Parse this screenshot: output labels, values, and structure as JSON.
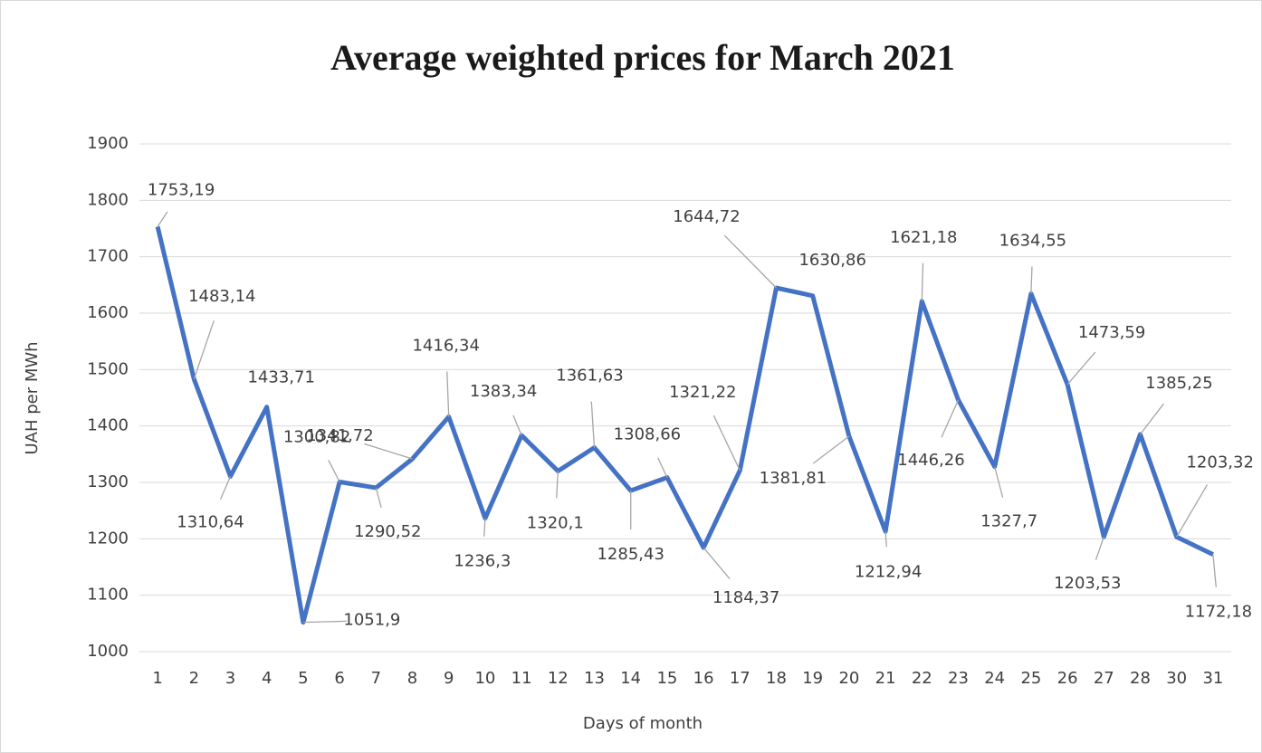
{
  "chart_data": {
    "type": "line",
    "title": "Average weighted prices for March 2021",
    "x_label": "Days of month",
    "y_label": "UAH per MWh",
    "categories": [
      "1",
      "2",
      "3",
      "4",
      "5",
      "6",
      "7",
      "8",
      "9",
      "10",
      "11",
      "12",
      "13",
      "14",
      "15",
      "16",
      "17",
      "18",
      "19",
      "20",
      "21",
      "22",
      "23",
      "24",
      "25",
      "26",
      "27",
      "28",
      "30",
      "31"
    ],
    "series": [
      {
        "name": "Average weighted price",
        "color": "#4472c4",
        "values": [
          1753.19,
          1483.14,
          1310.64,
          1433.71,
          1051.9,
          1300.82,
          1290.52,
          1341.72,
          1416.34,
          1236.3,
          1383.34,
          1320.1,
          1361.63,
          1285.43,
          1308.66,
          1184.37,
          1321.22,
          1644.72,
          1630.86,
          1381.81,
          1212.94,
          1621.18,
          1446.26,
          1327.7,
          1634.55,
          1473.59,
          1203.53,
          1385.25,
          1203.32,
          1172.18
        ],
        "value_labels": [
          "1753,19",
          "1483,14",
          "1310,64",
          "1433,71",
          "1051,9",
          "1300,82",
          "1290,52",
          "1341,72",
          "1416,34",
          "1236,3",
          "1383,34",
          "1320,1",
          "1361,63",
          "1285,43",
          "1308,66",
          "1184,37",
          "1321,22",
          "1644,72",
          "1630,86",
          "1381,81",
          "1212,94",
          "1621,18",
          "1446,26",
          "1327,7",
          "1634,55",
          "1473,59",
          "1203,53",
          "1385,25",
          "1203,32",
          "1172,18"
        ]
      }
    ],
    "ylim": [
      1000,
      1900
    ],
    "yticks": [
      1000,
      1100,
      1200,
      1300,
      1400,
      1500,
      1600,
      1700,
      1800,
      1900
    ],
    "grid": true
  }
}
